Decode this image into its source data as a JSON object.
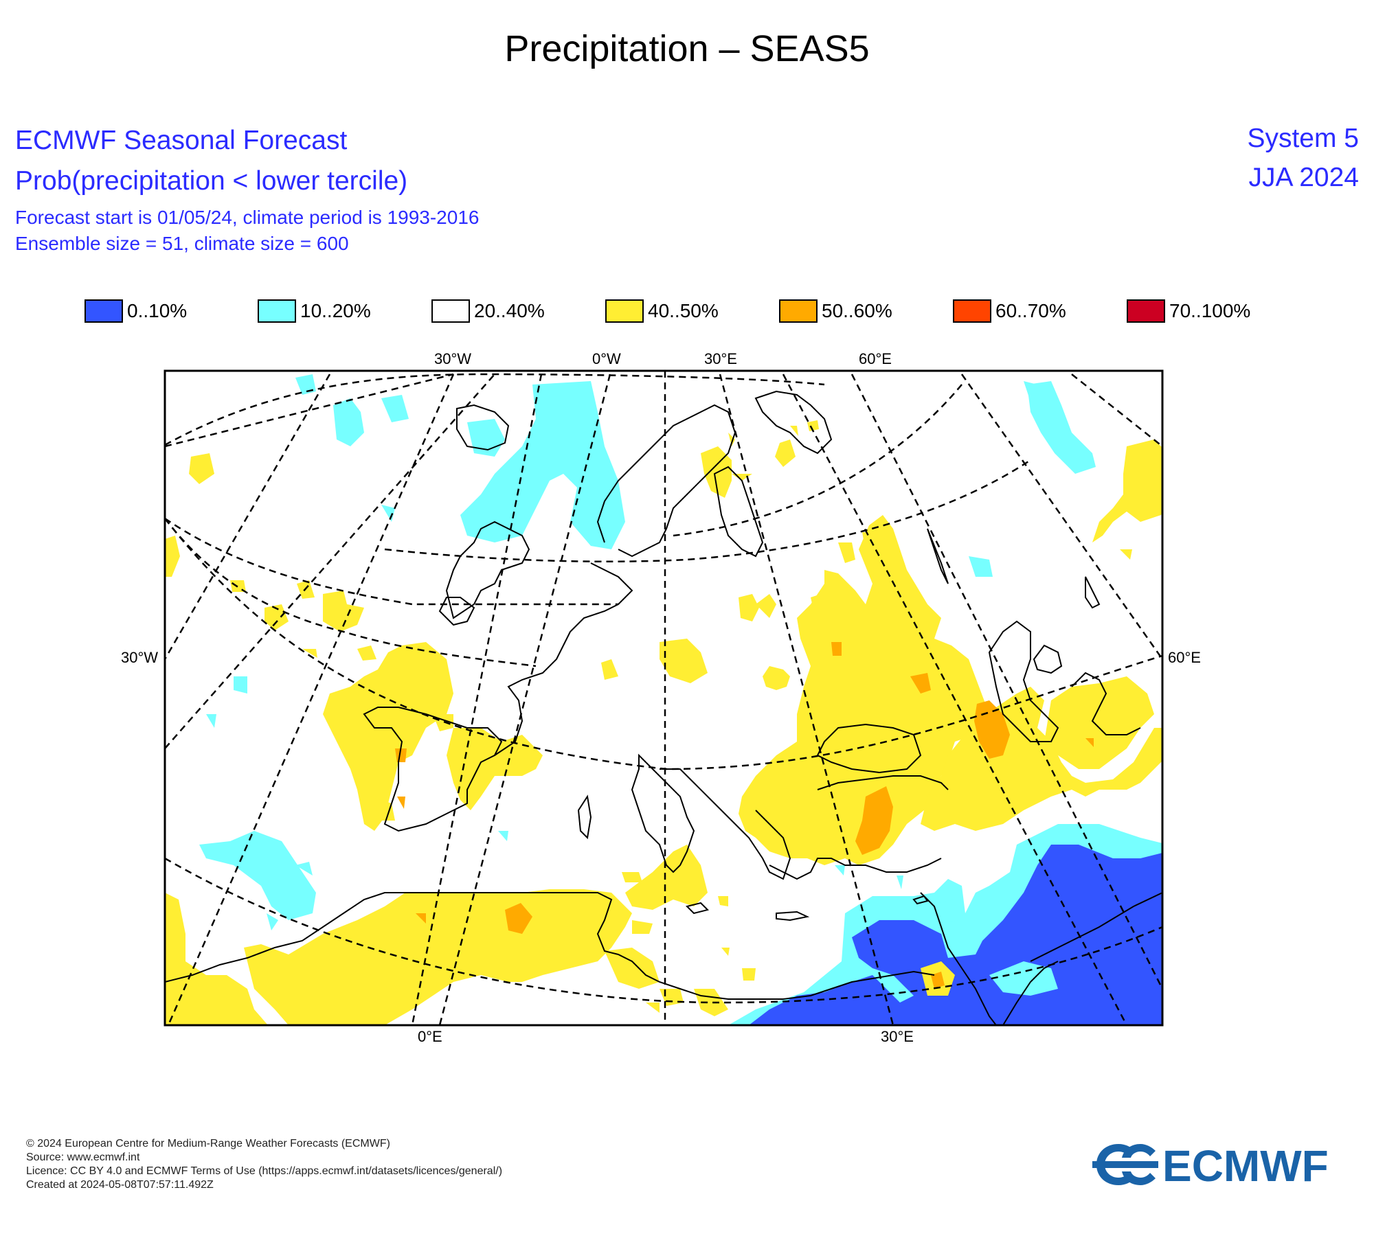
{
  "title": "Precipitation – SEAS5",
  "header": {
    "line1": "ECMWF Seasonal Forecast",
    "line2": "Prob(precipitation < lower tercile)",
    "line3": "Forecast start is 01/05/24, climate period is 1993-2016",
    "line4": "Ensemble size = 51, climate size = 600",
    "system": "System 5",
    "season": "JJA 2024"
  },
  "legend": [
    {
      "label": "0..10%",
      "color": "#3355ff"
    },
    {
      "label": "10..20%",
      "color": "#77ffff"
    },
    {
      "label": "20..40%",
      "color": "#ffffff"
    },
    {
      "label": "40..50%",
      "color": "#ffee33"
    },
    {
      "label": "50..60%",
      "color": "#ffaa00"
    },
    {
      "label": "60..70%",
      "color": "#ff4400"
    },
    {
      "label": "70..100%",
      "color": "#cc0022"
    }
  ],
  "axis_labels": {
    "top_30w": "30°W",
    "top_0w": "0°W",
    "top_30e": "30°E",
    "top_60e": "60°E",
    "left_30w": "30°W",
    "right_60e": "60°E",
    "bottom_0e": "0°E",
    "bottom_30e": "30°E"
  },
  "footer": {
    "copyright": "© 2024 European Centre for Medium-Range Weather Forecasts (ECMWF)",
    "source": "Source: www.ecmwf.int",
    "licence": "Licence: CC BY 4.0 and ECMWF Terms of Use (https://apps.ecmwf.int/datasets/licences/general/)",
    "created": "Created at 2024-05-08T07:57:11.492Z"
  },
  "logo_text": "ECMWF",
  "colors": {
    "header_blue": "#2b2bff",
    "logo_blue": "#1a63a8"
  }
}
